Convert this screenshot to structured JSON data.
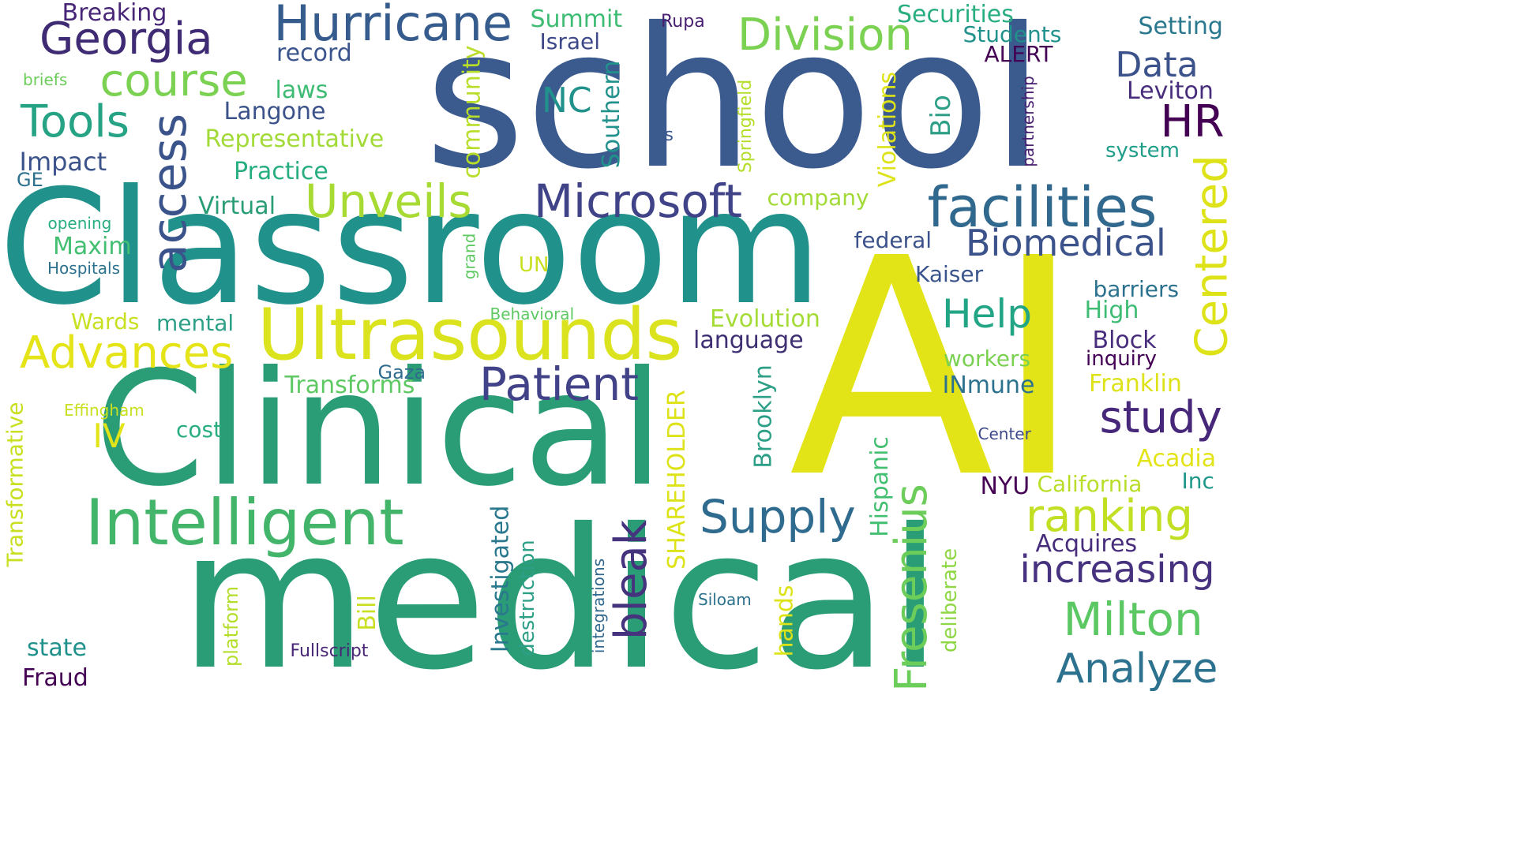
{
  "words": [
    {
      "text": "AI",
      "color": "#e2e418",
      "vertical": false
    },
    {
      "text": "school",
      "color": "#3b5a8e",
      "vertical": false
    },
    {
      "text": "Classroom",
      "color": "#21918c",
      "vertical": false
    },
    {
      "text": "medical",
      "color": "#2a9d77",
      "vertical": false
    },
    {
      "text": "Clinical",
      "color": "#2a9d77",
      "vertical": false
    },
    {
      "text": "Ultrasounds",
      "color": "#dbe31f",
      "vertical": false
    },
    {
      "text": "Intelligent",
      "color": "#43b56b",
      "vertical": false
    },
    {
      "text": "access",
      "color": "#3a538b",
      "vertical": true
    },
    {
      "text": "facilities",
      "color": "#31688e",
      "vertical": false
    },
    {
      "text": "Microsoft",
      "color": "#404387",
      "vertical": false
    },
    {
      "text": "Hurricane",
      "color": "#365c8d",
      "vertical": false
    },
    {
      "text": "Georgia",
      "color": "#3e2b73",
      "vertical": false
    },
    {
      "text": "Division",
      "color": "#7bd151",
      "vertical": false
    },
    {
      "text": "course",
      "color": "#7bd151",
      "vertical": false
    },
    {
      "text": "Tools",
      "color": "#25a384",
      "vertical": false
    },
    {
      "text": "Unveils",
      "color": "#a7da32",
      "vertical": false
    },
    {
      "text": "Advances",
      "color": "#e4e419",
      "vertical": false
    },
    {
      "text": "Patient",
      "color": "#414287",
      "vertical": false
    },
    {
      "text": "Supply",
      "color": "#2f6b8e",
      "vertical": false
    },
    {
      "text": "bleak",
      "color": "#46337e",
      "vertical": true
    },
    {
      "text": "Biomedical",
      "color": "#3b528b",
      "vertical": false
    },
    {
      "text": "Centered",
      "color": "#dde318",
      "vertical": true
    },
    {
      "text": "Help",
      "color": "#21a585",
      "vertical": false
    },
    {
      "text": "study",
      "color": "#46277a",
      "vertical": false
    },
    {
      "text": "ranking",
      "color": "#c2df23",
      "vertical": false
    },
    {
      "text": "increasing",
      "color": "#46327e",
      "vertical": false
    },
    {
      "text": "Milton",
      "color": "#5cc863",
      "vertical": false
    },
    {
      "text": "Analyze",
      "color": "#2c718e",
      "vertical": false
    },
    {
      "text": "Fresenius",
      "color": "#6ccd5a",
      "vertical": true
    },
    {
      "text": "HR",
      "color": "#440154",
      "vertical": false
    },
    {
      "text": "Data",
      "color": "#3b528b",
      "vertical": false
    },
    {
      "text": "NC",
      "color": "#21918c",
      "vertical": false
    },
    {
      "text": "Breaking",
      "color": "#482677",
      "vertical": false
    },
    {
      "text": "Summit",
      "color": "#3fbc73",
      "vertical": false
    },
    {
      "text": "Israel",
      "color": "#3e4989",
      "vertical": false
    },
    {
      "text": "Rupa",
      "color": "#481f70",
      "vertical": false
    },
    {
      "text": "Securities",
      "color": "#29af7f",
      "vertical": false
    },
    {
      "text": "Students",
      "color": "#21918c",
      "vertical": false
    },
    {
      "text": "ALERT",
      "color": "#440154",
      "vertical": false
    },
    {
      "text": "Setting",
      "color": "#2a788e",
      "vertical": false
    },
    {
      "text": "Leviton",
      "color": "#472d7b",
      "vertical": false
    },
    {
      "text": "record",
      "color": "#3a548c",
      "vertical": false
    },
    {
      "text": "laws",
      "color": "#3fbc73",
      "vertical": false
    },
    {
      "text": "Langone",
      "color": "#3b528b",
      "vertical": false
    },
    {
      "text": "Representative",
      "color": "#a2da37",
      "vertical": false
    },
    {
      "text": "Practice",
      "color": "#26ad81",
      "vertical": false
    },
    {
      "text": "Virtual",
      "color": "#2a9d77",
      "vertical": false
    },
    {
      "text": "Impact",
      "color": "#3b528b",
      "vertical": false
    },
    {
      "text": "GE",
      "color": "#2c728e",
      "vertical": false
    },
    {
      "text": "briefs",
      "color": "#6ccd5a",
      "vertical": false
    },
    {
      "text": "opening",
      "color": "#28ae80",
      "vertical": false
    },
    {
      "text": "Maxim",
      "color": "#43bf71",
      "vertical": false
    },
    {
      "text": "Hospitals",
      "color": "#2c728e",
      "vertical": false
    },
    {
      "text": "Wards",
      "color": "#c8e020",
      "vertical": false
    },
    {
      "text": "mental",
      "color": "#2c9f86",
      "vertical": false
    },
    {
      "text": "Behavioral",
      "color": "#5ec962",
      "vertical": false
    },
    {
      "text": "Evolution",
      "color": "#a5db36",
      "vertical": false
    },
    {
      "text": "language",
      "color": "#3e2f73",
      "vertical": false
    },
    {
      "text": "Gaza",
      "color": "#2f6b8e",
      "vertical": false
    },
    {
      "text": "Transforms",
      "color": "#5ec962",
      "vertical": false
    },
    {
      "text": "Effingham",
      "color": "#c8e020",
      "vertical": false
    },
    {
      "text": "IV",
      "color": "#e2e418",
      "vertical": false
    },
    {
      "text": "cost",
      "color": "#29af7f",
      "vertical": false
    },
    {
      "text": "UN",
      "color": "#c8e020",
      "vertical": false
    },
    {
      "text": "company",
      "color": "#a2da37",
      "vertical": false
    },
    {
      "text": "federal",
      "color": "#3b528b",
      "vertical": false
    },
    {
      "text": "Kaiser",
      "color": "#3a548c",
      "vertical": false
    },
    {
      "text": "barriers",
      "color": "#2c728e",
      "vertical": false
    },
    {
      "text": "High",
      "color": "#3fbc73",
      "vertical": false
    },
    {
      "text": "Block",
      "color": "#472d7b",
      "vertical": false
    },
    {
      "text": "inquiry",
      "color": "#440154",
      "vertical": false
    },
    {
      "text": "workers",
      "color": "#7ad151",
      "vertical": false
    },
    {
      "text": "INmune",
      "color": "#2c728e",
      "vertical": false
    },
    {
      "text": "Franklin",
      "color": "#dde318",
      "vertical": false
    },
    {
      "text": "Center",
      "color": "#3e4989",
      "vertical": false
    },
    {
      "text": "Acadia",
      "color": "#e2e418",
      "vertical": false
    },
    {
      "text": "NYU",
      "color": "#440154",
      "vertical": false
    },
    {
      "text": "California",
      "color": "#b8de29",
      "vertical": false
    },
    {
      "text": "Inc",
      "color": "#1f988b",
      "vertical": false
    },
    {
      "text": "Acquires",
      "color": "#472d7b",
      "vertical": false
    },
    {
      "text": "Siloam",
      "color": "#2c728e",
      "vertical": false
    },
    {
      "text": "state",
      "color": "#21918c",
      "vertical": false
    },
    {
      "text": "Fraud",
      "color": "#440154",
      "vertical": false
    },
    {
      "text": "Fullscript",
      "color": "#482677",
      "vertical": false
    },
    {
      "text": "s",
      "color": "#3a548c",
      "vertical": false
    },
    {
      "text": "system",
      "color": "#1f9e89",
      "vertical": false
    },
    {
      "text": "community",
      "color": "#b8de29",
      "vertical": true
    },
    {
      "text": "Southern",
      "color": "#21918c",
      "vertical": true
    },
    {
      "text": "Springfield",
      "color": "#b5de2b",
      "vertical": true
    },
    {
      "text": "Violations",
      "color": "#dde318",
      "vertical": true
    },
    {
      "text": "Bio",
      "color": "#2c9f86",
      "vertical": true
    },
    {
      "text": "partnership",
      "color": "#481f70",
      "vertical": true
    },
    {
      "text": "grand",
      "color": "#5ec962",
      "vertical": true
    },
    {
      "text": "Transformative",
      "color": "#c8e020",
      "vertical": true
    },
    {
      "text": "Brooklyn",
      "color": "#2c9f86",
      "vertical": true
    },
    {
      "text": "SHAREHOLDER",
      "color": "#dde318",
      "vertical": true
    },
    {
      "text": "Hispanic",
      "color": "#43bf71",
      "vertical": true
    },
    {
      "text": "Investigated",
      "color": "#2a788e",
      "vertical": true
    },
    {
      "text": "destruction",
      "color": "#2c9f86",
      "vertical": true
    },
    {
      "text": "integrations",
      "color": "#31688e",
      "vertical": true
    },
    {
      "text": "platform",
      "color": "#b5de2b",
      "vertical": true
    },
    {
      "text": "Bill",
      "color": "#c8e020",
      "vertical": true
    },
    {
      "text": "hands",
      "color": "#dde318",
      "vertical": true
    },
    {
      "text": "deliberate",
      "color": "#8fd744",
      "vertical": true
    }
  ]
}
